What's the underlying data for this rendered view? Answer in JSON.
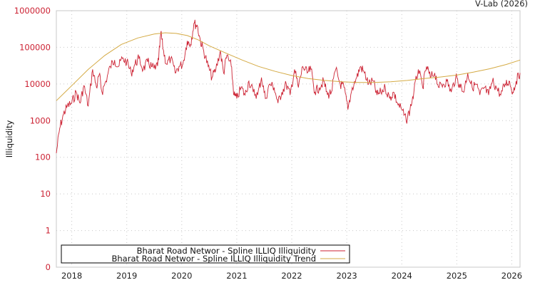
{
  "credit": "V-Lab (2026)",
  "chart_data": {
    "type": "line",
    "title": "",
    "xlabel": "",
    "ylabel": "Illiquidity",
    "yscale": "log",
    "ylim": [
      0,
      1000000
    ],
    "y_ticks": [
      "1000000",
      "100000",
      "10000",
      "1000",
      "100",
      "10",
      "1",
      "0"
    ],
    "x_ticks": [
      "2018",
      "2019",
      "2020",
      "2021",
      "2022",
      "2023",
      "2024",
      "2025",
      "2026"
    ],
    "xlim": [
      2017.72,
      2026.15
    ],
    "grid": true,
    "legend_position": "bottom-left",
    "series": [
      {
        "name": "Bharat Road Networ - Spline ILLIQ Illiquidity",
        "color": "#cc2233",
        "x": [
          2017.72,
          2017.78,
          2017.85,
          2017.92,
          2018.0,
          2018.08,
          2018.15,
          2018.22,
          2018.3,
          2018.38,
          2018.45,
          2018.5,
          2018.55,
          2018.62,
          2018.7,
          2018.78,
          2018.85,
          2018.92,
          2019.0,
          2019.08,
          2019.15,
          2019.22,
          2019.3,
          2019.38,
          2019.45,
          2019.52,
          2019.58,
          2019.62,
          2019.66,
          2019.72,
          2019.8,
          2019.88,
          2019.95,
          2020.02,
          2020.1,
          2020.16,
          2020.22,
          2020.28,
          2020.34,
          2020.4,
          2020.48,
          2020.55,
          2020.62,
          2020.7,
          2020.76,
          2020.82,
          2020.9,
          2020.95,
          2021.0,
          2021.08,
          2021.15,
          2021.22,
          2021.3,
          2021.38,
          2021.45,
          2021.52,
          2021.6,
          2021.68,
          2021.75,
          2021.82,
          2021.9,
          2021.97,
          2022.05,
          2022.12,
          2022.2,
          2022.28,
          2022.35,
          2022.42,
          2022.5,
          2022.58,
          2022.65,
          2022.72,
          2022.8,
          2022.88,
          2022.95,
          2023.02,
          2023.1,
          2023.18,
          2023.25,
          2023.32,
          2023.4,
          2023.48,
          2023.55,
          2023.62,
          2023.7,
          2023.78,
          2023.85,
          2023.92,
          2024.0,
          2024.08,
          2024.15,
          2024.22,
          2024.3,
          2024.38,
          2024.45,
          2024.52,
          2024.6,
          2024.68,
          2024.75,
          2024.82,
          2024.9,
          2024.98,
          2025.05,
          2025.12,
          2025.2,
          2025.28,
          2025.35,
          2025.42,
          2025.5,
          2025.58,
          2025.65,
          2025.72,
          2025.8,
          2025.88,
          2025.95,
          2026.02,
          2026.08,
          2026.15
        ],
        "y": [
          130,
          600,
          1500,
          2500,
          3000,
          6000,
          3000,
          9000,
          2500,
          25000,
          8000,
          18000,
          6000,
          12000,
          30000,
          45000,
          30000,
          50000,
          40000,
          20000,
          35000,
          50000,
          25000,
          40000,
          30000,
          25000,
          45000,
          260000,
          90000,
          35000,
          50000,
          20000,
          30000,
          35000,
          150000,
          120000,
          450000,
          400000,
          150000,
          80000,
          30000,
          15000,
          25000,
          80000,
          20000,
          60000,
          30000,
          5000,
          4000,
          8000,
          5000,
          12000,
          6000,
          5000,
          15000,
          4000,
          10000,
          8000,
          3000,
          6000,
          10000,
          5000,
          25000,
          8000,
          30000,
          20000,
          25000,
          6000,
          8000,
          12000,
          5000,
          6000,
          25000,
          10000,
          8000,
          2000,
          8000,
          15000,
          30000,
          20000,
          10000,
          12000,
          5000,
          6000,
          8000,
          4000,
          6000,
          3000,
          2000,
          1000,
          2000,
          6000,
          25000,
          8000,
          30000,
          15000,
          20000,
          8000,
          10000,
          12000,
          6000,
          15000,
          10000,
          6000,
          20000,
          8000,
          10000,
          5000,
          8000,
          5000,
          12000,
          8000,
          5000,
          10000,
          12000,
          6000,
          12000,
          20000
        ]
      },
      {
        "name": "Bharat Road Networ - Spline ILLIQ Illiquidity Trend",
        "color": "#d4aa44",
        "x": [
          2017.72,
          2018.0,
          2018.3,
          2018.6,
          2018.9,
          2019.2,
          2019.5,
          2019.7,
          2019.9,
          2020.1,
          2020.3,
          2020.5,
          2020.8,
          2021.1,
          2021.4,
          2021.7,
          2022.0,
          2022.3,
          2022.6,
          2022.9,
          2023.2,
          2023.5,
          2023.8,
          2024.1,
          2024.4,
          2024.7,
          2025.0,
          2025.3,
          2025.6,
          2025.9,
          2026.15
        ],
        "y": [
          3500,
          9000,
          25000,
          60000,
          120000,
          180000,
          230000,
          250000,
          240000,
          210000,
          160000,
          110000,
          70000,
          45000,
          30000,
          22000,
          17000,
          14000,
          12500,
          11500,
          11000,
          11000,
          11500,
          12500,
          14000,
          15500,
          17500,
          21000,
          26000,
          34000,
          45000
        ]
      }
    ]
  },
  "legend": {
    "items": [
      {
        "label": "Bharat Road Networ - Spline ILLIQ Illiquidity",
        "color": "#cc2233"
      },
      {
        "label": "Bharat Road Networ - Spline ILLIQ Illiquidity Trend",
        "color": "#d4aa44"
      }
    ]
  }
}
